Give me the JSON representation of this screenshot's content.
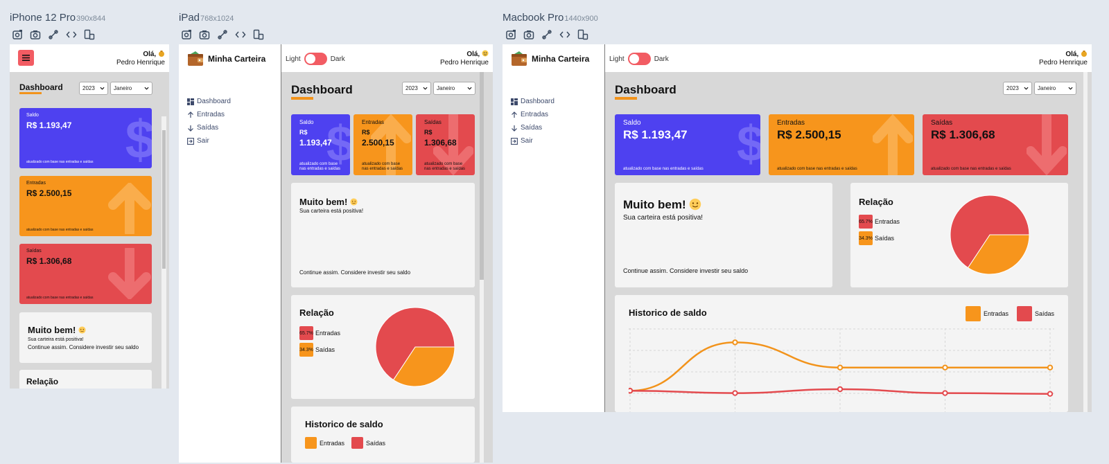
{
  "devices": {
    "iphone": {
      "name": "iPhone 12 Pro",
      "dim": "390x844"
    },
    "ipad": {
      "name": "iPad",
      "dim": "768x1024"
    },
    "macbook": {
      "name": "Macbook Pro",
      "dim": "1440x900"
    }
  },
  "toolbar_icons": [
    "rotate-icon",
    "screenshot-icon",
    "touch-icon",
    "code-icon",
    "layout-icon"
  ],
  "app": {
    "logo": "Minha Carteira",
    "menu": [
      "Dashboard",
      "Entradas",
      "Saídas",
      "Sair"
    ],
    "theme": {
      "light": "Light",
      "dark": "Dark"
    },
    "greeting": {
      "hello": "Olá,",
      "user": "Pedro Henrique"
    },
    "title": "Dashboard",
    "filters": {
      "year": "2023",
      "month": "Janeiro"
    },
    "cards": {
      "saldo": {
        "label": "Saldo",
        "value": "R$ 1.193,47",
        "value_top": "R$",
        "value_bottom": "1.193,47",
        "footer": "atualizado com base nas entradas e saídas",
        "footer_l1": "atualizado com base",
        "footer_l2": "nas entradas e saídas"
      },
      "entradas": {
        "label": "Entradas",
        "value": "R$ 2.500,15",
        "value_mobile": "R$ 2.500,15",
        "value_top": "R$",
        "value_bottom": "2.500,15",
        "footer": "atualizado com base nas entradas e saídas",
        "footer_l1": "atualizado com base",
        "footer_l2": "nas entradas e saídas"
      },
      "saidas": {
        "label": "Saídas",
        "value": "R$ 1.306,68",
        "value_top": "R$",
        "value_bottom": "1.306,68",
        "footer": "atualizado com base nas entradas e saídas",
        "footer_l1": "atualizado com base",
        "footer_l2": "nas entradas e saídas"
      }
    },
    "message": {
      "title": "Muito bem!",
      "subtitle": "Sua carteira está positiva!",
      "footer": "Continue assim. Considere investir seu saldo"
    },
    "relation": {
      "title": "Relação",
      "mobile_partial": "Relação",
      "entradas": {
        "percent": "65.7%",
        "label": "Entradas"
      },
      "saidas": {
        "percent": "34.3%",
        "label": "Saídas"
      }
    },
    "history": {
      "title": "Historico de saldo",
      "legend_entradas": "Entradas",
      "legend_saidas": "Saídas"
    }
  },
  "colors": {
    "saldo": "#4e41f0",
    "entradas": "#f7951c",
    "saidas": "#e34a4e",
    "accent": "#f2931b",
    "toggle": "#f25c63"
  },
  "chart_data": [
    {
      "type": "pie",
      "labels": [
        "Entradas",
        "Saídas"
      ],
      "values": [
        65.7,
        34.3
      ],
      "colors": [
        "#e34a4e",
        "#f7951c"
      ]
    },
    {
      "type": "line",
      "title": "Historico de saldo",
      "x": [
        1,
        2,
        3,
        4,
        5
      ],
      "series": [
        {
          "name": "Entradas",
          "values": [
            0,
            2500.15,
            1200,
            1200,
            1200
          ],
          "color": "#f2931b"
        },
        {
          "name": "Saídas",
          "values": [
            0,
            -120,
            80,
            -120,
            -160
          ],
          "color": "#e34a4e"
        }
      ],
      "grid": true
    }
  ]
}
